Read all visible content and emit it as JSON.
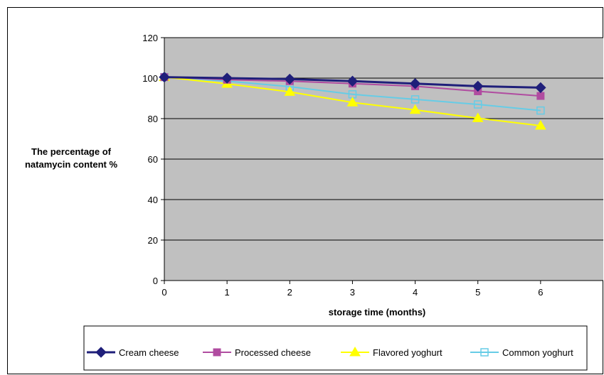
{
  "chart_data": {
    "type": "line",
    "title": "",
    "xlabel": "storage time (months)",
    "ylabel_line1": "The percentage of",
    "ylabel_line2": "natamycin content %",
    "x": [
      0,
      1,
      2,
      3,
      4,
      5,
      6
    ],
    "x_ticks": [
      "0",
      "1",
      "2",
      "3",
      "4",
      "5",
      "6"
    ],
    "xlim": [
      0,
      7
    ],
    "ylim": [
      0,
      120
    ],
    "y_ticks": [
      "0",
      "20",
      "40",
      "60",
      "80",
      "100",
      "120"
    ],
    "grid": true,
    "plot_background": "#c0c0c0",
    "legend_position": "bottom",
    "series": [
      {
        "name": "Cream cheese",
        "color": "#1f1f7a",
        "marker": "diamond-filled",
        "values": [
          100.5,
          100,
          99.5,
          98.5,
          97.3,
          96,
          95.3
        ]
      },
      {
        "name": "Processed cheese",
        "color": "#b04ca0",
        "marker": "square-filled",
        "values": [
          100.5,
          99.2,
          98.5,
          97.3,
          96,
          93.5,
          91.2
        ]
      },
      {
        "name": "Flavored yoghurt",
        "color": "#ffff00",
        "marker": "triangle-filled",
        "values": [
          100.5,
          97.2,
          93.2,
          88,
          84.3,
          80.2,
          76.5
        ]
      },
      {
        "name": "Common yoghurt",
        "color": "#66cce6",
        "marker": "square-open",
        "values": [
          100.5,
          98.5,
          95.8,
          92,
          89.5,
          87,
          84
        ]
      }
    ]
  }
}
